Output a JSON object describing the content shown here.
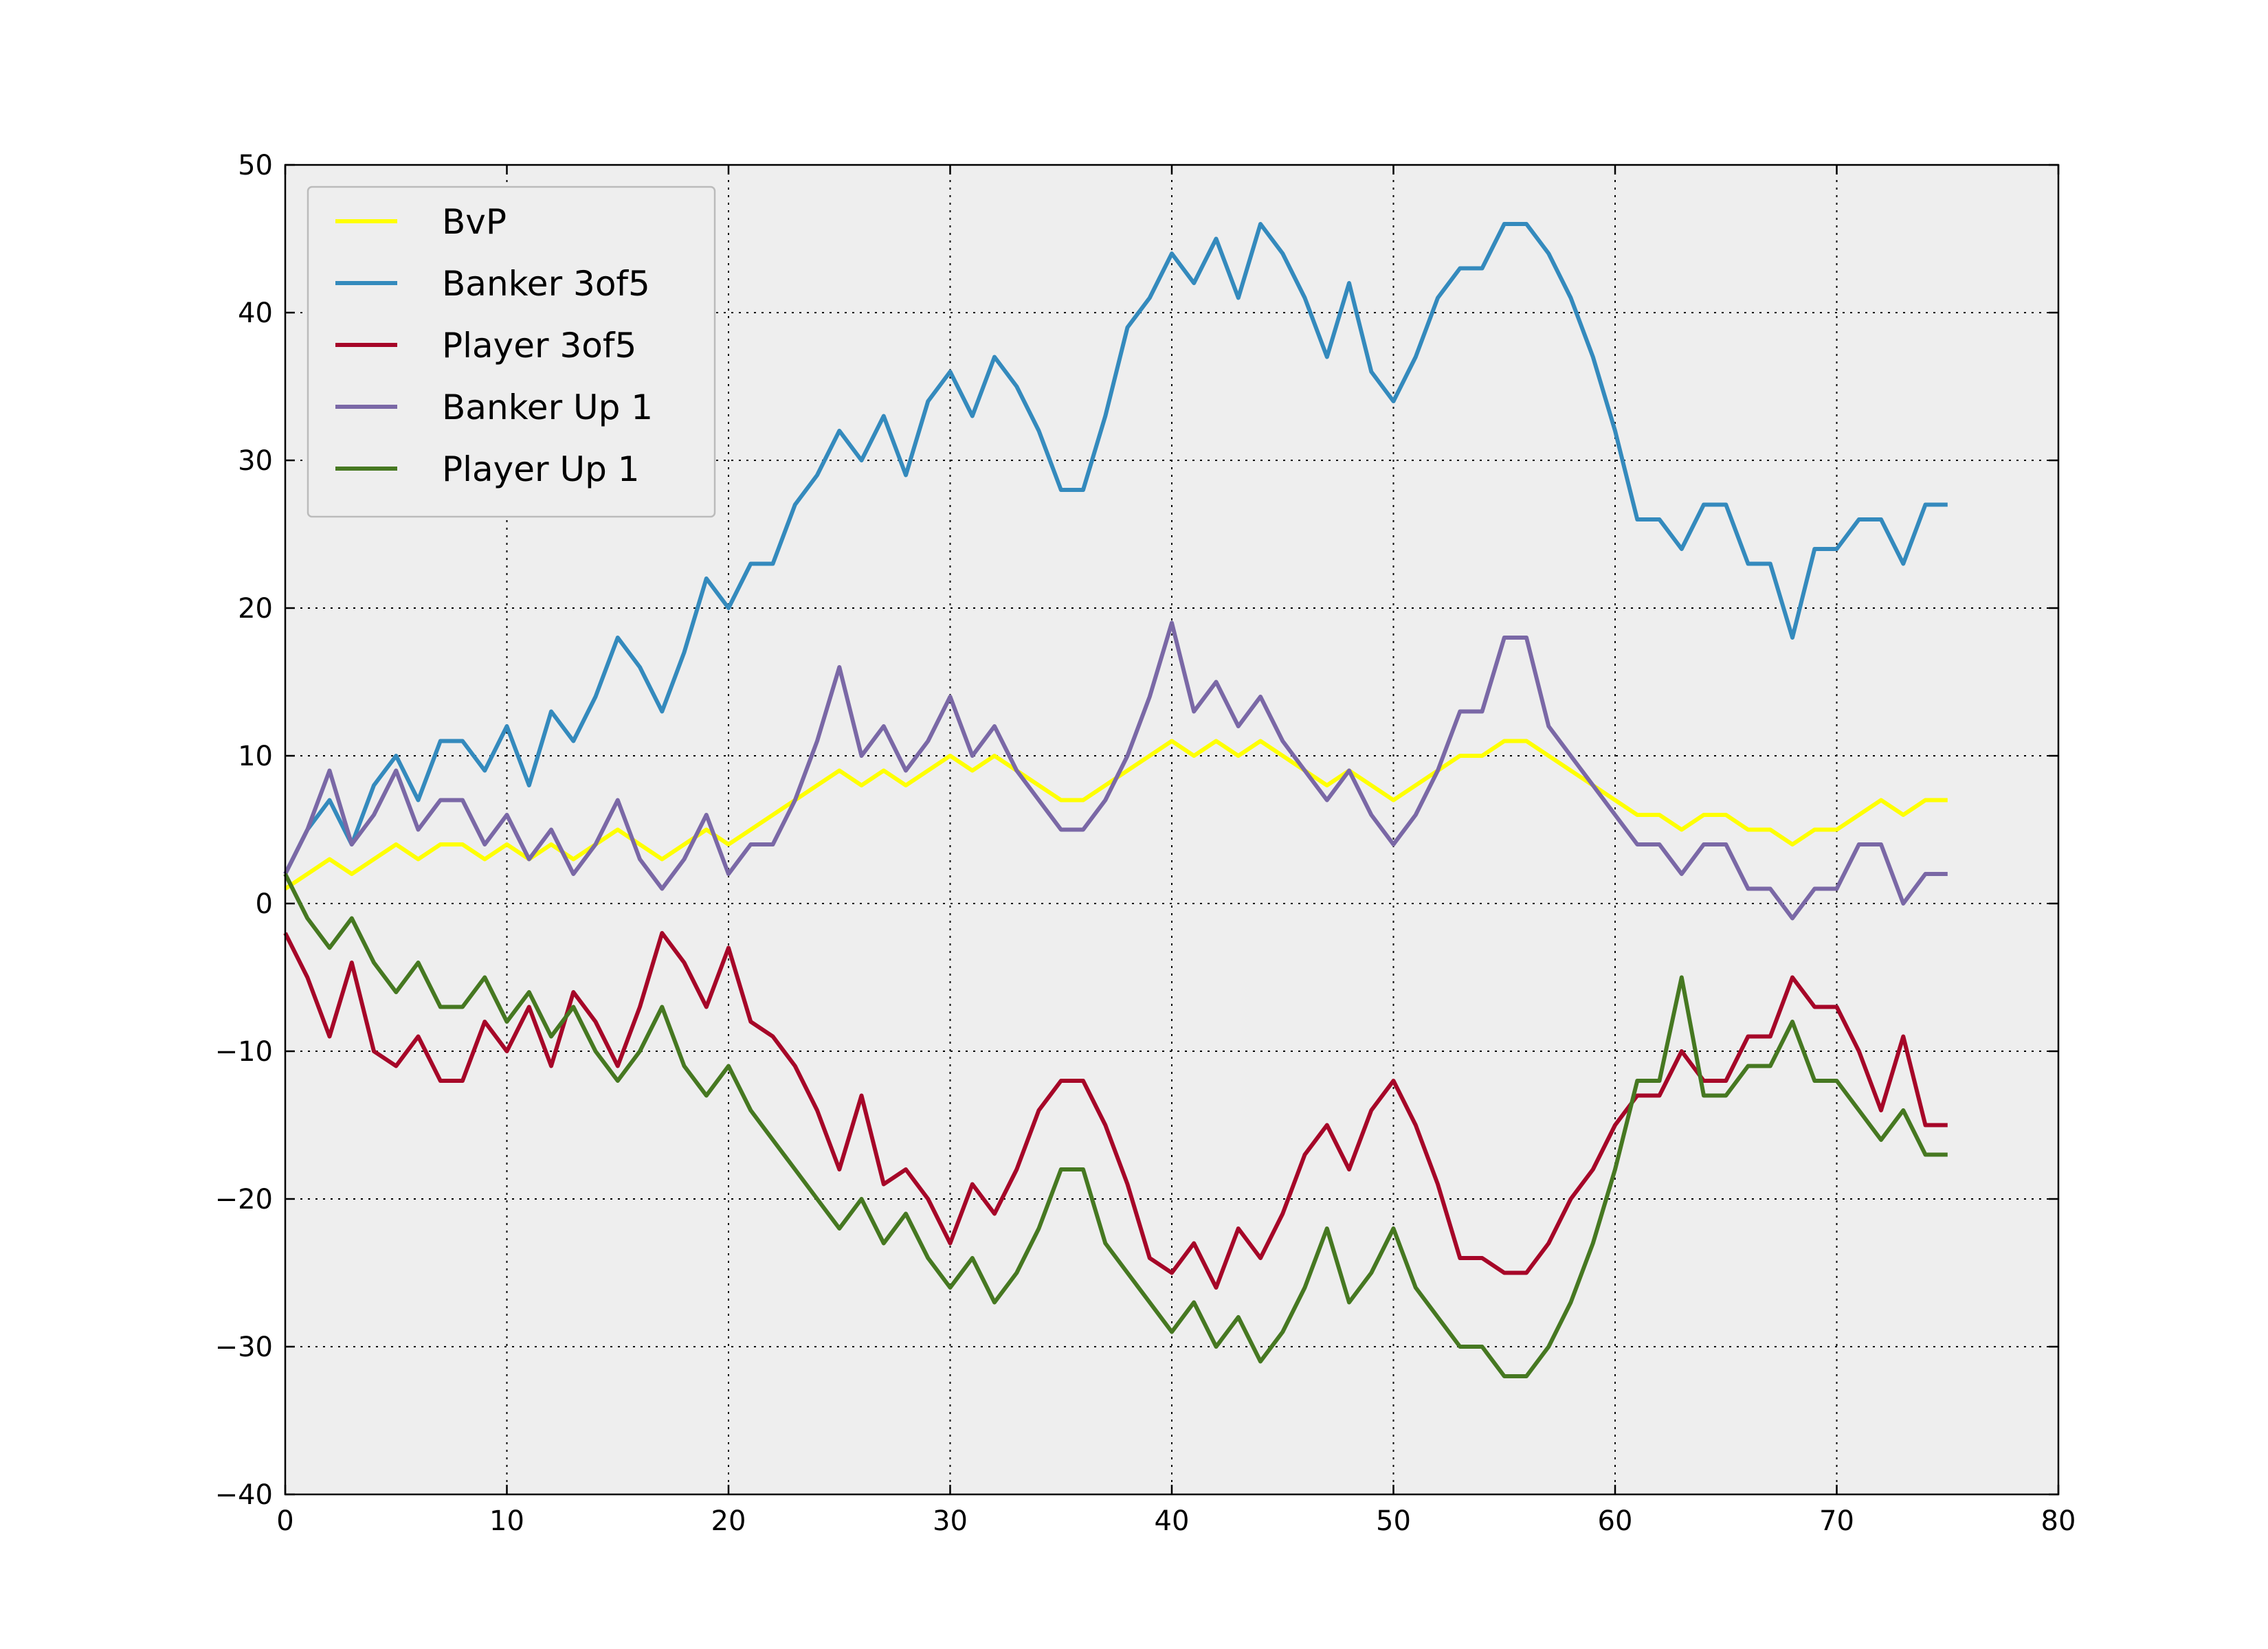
{
  "chart_data": {
    "type": "line",
    "title": "",
    "xlabel": "",
    "ylabel": "",
    "xlim": [
      0,
      80
    ],
    "ylim": [
      -40,
      50
    ],
    "xticks": [
      0,
      10,
      20,
      30,
      40,
      50,
      60,
      70,
      80
    ],
    "yticks": [
      -40,
      -30,
      -20,
      -10,
      0,
      10,
      20,
      30,
      40,
      50
    ],
    "xtick_labels": [
      "0",
      "10",
      "20",
      "30",
      "40",
      "50",
      "60",
      "70",
      "80"
    ],
    "ytick_labels": [
      "−40",
      "−30",
      "−20",
      "−10",
      "0",
      "10",
      "20",
      "30",
      "40",
      "50"
    ],
    "grid": true,
    "grid_style": "dotted",
    "background": "#eeeeee",
    "legend_position": "top-left",
    "x": [
      0,
      1,
      2,
      3,
      4,
      5,
      6,
      7,
      8,
      9,
      10,
      11,
      12,
      13,
      14,
      15,
      16,
      17,
      18,
      19,
      20,
      21,
      22,
      23,
      24,
      25,
      26,
      27,
      28,
      29,
      30,
      31,
      32,
      33,
      34,
      35,
      36,
      37,
      38,
      39,
      40,
      41,
      42,
      43,
      44,
      45,
      46,
      47,
      48,
      49,
      50,
      51,
      52,
      53,
      54,
      55,
      56,
      57,
      58,
      59,
      60,
      61,
      62,
      63,
      64,
      65,
      66,
      67,
      68,
      69,
      70,
      71,
      72,
      73,
      74,
      75
    ],
    "series": [
      {
        "name": "BvP",
        "color": "#ffff00",
        "values": [
          1,
          2,
          3,
          2,
          3,
          4,
          3,
          4,
          4,
          3,
          4,
          3,
          4,
          3,
          4,
          5,
          4,
          3,
          4,
          5,
          4,
          5,
          6,
          7,
          8,
          9,
          8,
          9,
          8,
          9,
          10,
          9,
          10,
          9,
          8,
          7,
          7,
          8,
          9,
          10,
          11,
          10,
          11,
          10,
          11,
          10,
          9,
          8,
          9,
          8,
          7,
          8,
          9,
          10,
          10,
          11,
          11,
          10,
          9,
          8,
          7,
          6,
          6,
          5,
          6,
          6,
          5,
          5,
          4,
          5,
          5,
          6,
          7,
          6,
          7,
          7
        ]
      },
      {
        "name": "Banker 3of5",
        "color": "#348abd",
        "values": [
          2,
          5,
          7,
          4,
          8,
          10,
          7,
          11,
          11,
          9,
          12,
          8,
          13,
          11,
          14,
          18,
          16,
          13,
          17,
          22,
          20,
          23,
          23,
          27,
          29,
          32,
          30,
          33,
          29,
          34,
          36,
          33,
          37,
          35,
          32,
          28,
          28,
          33,
          39,
          41,
          44,
          42,
          45,
          41,
          46,
          44,
          41,
          37,
          42,
          36,
          34,
          37,
          41,
          43,
          43,
          46,
          46,
          44,
          41,
          37,
          32,
          26,
          26,
          24,
          27,
          27,
          23,
          23,
          18,
          24,
          24,
          26,
          26,
          23,
          27,
          27
        ]
      },
      {
        "name": "Player 3of5",
        "color": "#a60628",
        "values": [
          -2,
          -5,
          -9,
          -4,
          -10,
          -11,
          -9,
          -12,
          -12,
          -8,
          -10,
          -7,
          -11,
          -6,
          -8,
          -11,
          -7,
          -2,
          -4,
          -7,
          -3,
          -8,
          -9,
          -11,
          -14,
          -18,
          -13,
          -19,
          -18,
          -20,
          -23,
          -19,
          -21,
          -18,
          -14,
          -12,
          -12,
          -15,
          -19,
          -24,
          -25,
          -23,
          -26,
          -22,
          -24,
          -21,
          -17,
          -15,
          -18,
          -14,
          -12,
          -15,
          -19,
          -24,
          -24,
          -25,
          -25,
          -23,
          -20,
          -18,
          -15,
          -13,
          -13,
          -10,
          -12,
          -12,
          -9,
          -9,
          -5,
          -7,
          -7,
          -10,
          -14,
          -9,
          -15,
          -15
        ]
      },
      {
        "name": "Banker Up 1",
        "color": "#7a68a6",
        "values": [
          2,
          5,
          9,
          4,
          6,
          9,
          5,
          7,
          7,
          4,
          6,
          3,
          5,
          2,
          4,
          7,
          3,
          1,
          3,
          6,
          2,
          4,
          4,
          7,
          11,
          16,
          10,
          12,
          9,
          11,
          14,
          10,
          12,
          9,
          7,
          5,
          5,
          7,
          10,
          14,
          19,
          13,
          15,
          12,
          14,
          11,
          9,
          7,
          9,
          6,
          4,
          6,
          9,
          13,
          13,
          18,
          18,
          12,
          10,
          8,
          6,
          4,
          4,
          2,
          4,
          4,
          1,
          1,
          -1,
          1,
          1,
          4,
          4,
          0,
          2,
          2
        ]
      },
      {
        "name": "Player Up 1",
        "color": "#467821",
        "values": [
          2,
          -1,
          -3,
          -1,
          -4,
          -6,
          -4,
          -7,
          -7,
          -5,
          -8,
          -6,
          -9,
          -7,
          -10,
          -12,
          -10,
          -7,
          -11,
          -13,
          -11,
          -14,
          -16,
          -18,
          -20,
          -22,
          -20,
          -23,
          -21,
          -24,
          -26,
          -24,
          -27,
          -25,
          -22,
          -18,
          -18,
          -23,
          -25,
          -27,
          -29,
          -27,
          -30,
          -28,
          -31,
          -29,
          -26,
          -22,
          -27,
          -25,
          -22,
          -26,
          -28,
          -30,
          -30,
          -32,
          -32,
          -30,
          -27,
          -23,
          -18,
          -12,
          -12,
          -5,
          -13,
          -13,
          -11,
          -11,
          -8,
          -12,
          -12,
          -14,
          -16,
          -14,
          -17,
          -17
        ]
      }
    ]
  }
}
